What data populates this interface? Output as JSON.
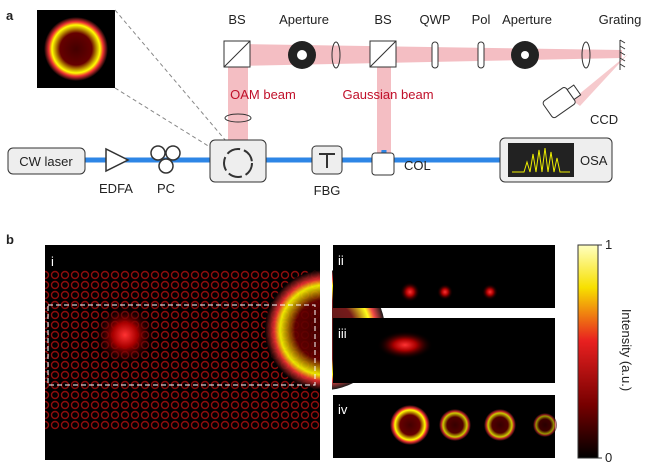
{
  "panel_a": {
    "label": "a",
    "components": {
      "bs1": "BS",
      "aperture1": "Aperture",
      "bs2": "BS",
      "qwp": "QWP",
      "pol": "Pol",
      "aperture2": "Aperture",
      "grating": "Grating",
      "col": "COL",
      "ccd": "CCD",
      "cw_laser": "CW laser",
      "edfa": "EDFA",
      "pc": "PC",
      "fbg": "FBG",
      "osa": "OSA"
    },
    "beams": {
      "oam": "OAM beam",
      "gaussian": "Gaussian beam"
    }
  },
  "panel_b": {
    "label": "b",
    "subpanels": [
      "i",
      "ii",
      "iii",
      "iv"
    ],
    "colorbar": {
      "title": "Intensity (a.u.)",
      "max": "1",
      "min": "0"
    }
  }
}
